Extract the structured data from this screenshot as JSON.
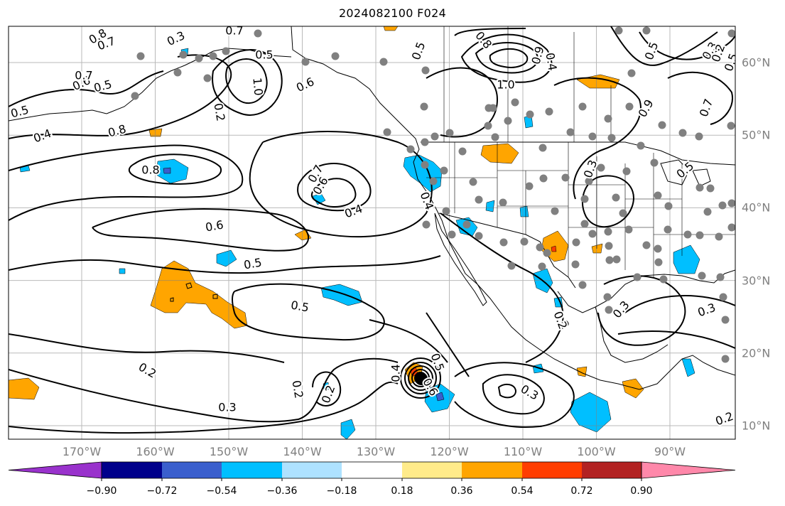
{
  "title": "2024082100 F024",
  "map": {
    "projection": "Plate Carree",
    "extent_lon": [
      -180,
      -80
    ],
    "extent_lat": [
      8,
      65
    ],
    "lon_ticks": [
      "170°W",
      "160°W",
      "150°W",
      "140°W",
      "130°W",
      "120°W",
      "110°W",
      "100°W",
      "90°W"
    ],
    "lat_ticks": [
      "60°N",
      "50°N",
      "40°N",
      "30°N",
      "20°N",
      "10°N"
    ],
    "contour_labels": [
      "0.8",
      "0.7",
      "0.3",
      "0.6",
      "0.5",
      "0.7",
      "0.5",
      "0.6",
      "1.0",
      "0.7",
      "0.8",
      "0.5",
      "0.2",
      "0.5",
      "0.8",
      "0.9",
      "0.4",
      "1.0",
      "0.9",
      "0.5",
      "0.3",
      "0.2",
      "0.5",
      "0.7",
      "0.4",
      "0.8",
      "0.7",
      "0.6",
      "0.4",
      "0.6",
      "0.4",
      "0.3",
      "0.5",
      "0.5",
      "0.5",
      "0.2",
      "0.2",
      "0.2",
      "0.3",
      "0.5",
      "0.4",
      "0.6",
      "0.2",
      "0.3",
      "0.3",
      "0.2",
      "0.3",
      "0.2"
    ],
    "colors": {
      "contour": "#000000",
      "grid": "#808080",
      "station": "#808080",
      "coast": "#000000"
    }
  },
  "colorbar": {
    "ticks": [
      "−0.90",
      "−0.72",
      "−0.54",
      "−0.36",
      "−0.18",
      "0.18",
      "0.36",
      "0.54",
      "0.72",
      "0.90"
    ],
    "colors": [
      "#9932cc",
      "#00008b",
      "#3a5fcd",
      "#00bfff",
      "#aee2ff",
      "#ffffff",
      "#ffeb8a",
      "#ffa500",
      "#ff3d00",
      "#b22222",
      "#ff88aa"
    ]
  },
  "chart_data": {
    "type": "contour",
    "title": "2024082100 F024",
    "field_levels": [
      "−0.90",
      "−0.72",
      "−0.54",
      "−0.36",
      "−0.18",
      "0.18",
      "0.36",
      "0.54",
      "0.72",
      "0.90"
    ]
  }
}
